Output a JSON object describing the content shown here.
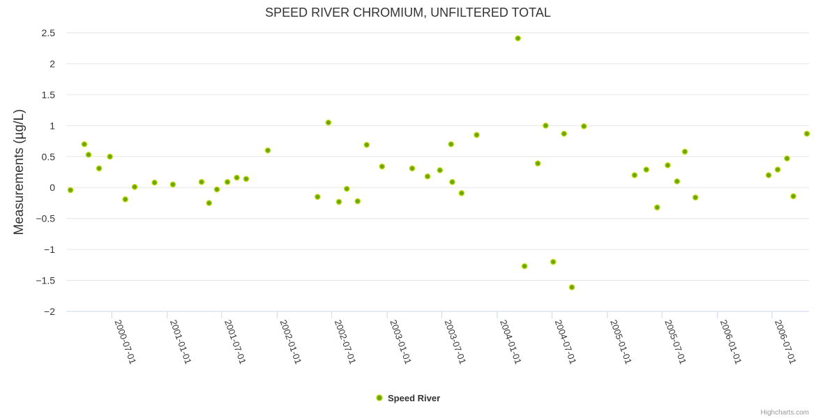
{
  "credits": "Highcharts.com",
  "colors": {
    "point_fill": "#66a80f",
    "point_stroke": "#c6d40a"
  },
  "chart_data": {
    "type": "scatter",
    "title": "SPEED RIVER CHROMIUM, UNFILTERED TOTAL",
    "ylabel": "Measurements (µg/L)",
    "xlabel": "",
    "ylim": [
      -2,
      2.5
    ],
    "yticks": [
      "2.5",
      "2",
      "1.5",
      "1",
      "0.5",
      "0",
      "−0.5",
      "−1",
      "−1.5",
      "−2"
    ],
    "ytick_values": [
      2.5,
      2,
      1.5,
      1,
      0.5,
      0,
      -0.5,
      -1,
      -1.5,
      -2
    ],
    "xlim": [
      "2000-02-01",
      "2006-11-01"
    ],
    "xticks": [
      "2000-07-01",
      "2001-01-01",
      "2001-07-01",
      "2002-01-01",
      "2002-07-01",
      "2003-01-01",
      "2003-07-01",
      "2004-01-01",
      "2004-07-01",
      "2005-01-01",
      "2005-07-01",
      "2006-01-01",
      "2006-07-01"
    ],
    "grid": true,
    "legend_position": "bottom-center",
    "series": [
      {
        "name": "Speed River",
        "points": [
          {
            "x": "2000-02-15",
            "y": -0.04
          },
          {
            "x": "2000-04-01",
            "y": 0.7
          },
          {
            "x": "2000-04-15",
            "y": 0.53
          },
          {
            "x": "2000-05-20",
            "y": 0.31
          },
          {
            "x": "2000-06-25",
            "y": 0.5
          },
          {
            "x": "2000-08-15",
            "y": -0.19
          },
          {
            "x": "2000-09-15",
            "y": 0.01
          },
          {
            "x": "2000-11-20",
            "y": 0.08
          },
          {
            "x": "2001-01-20",
            "y": 0.05
          },
          {
            "x": "2001-04-25",
            "y": 0.09
          },
          {
            "x": "2001-05-20",
            "y": -0.25
          },
          {
            "x": "2001-06-15",
            "y": -0.03
          },
          {
            "x": "2001-07-20",
            "y": 0.09
          },
          {
            "x": "2001-08-20",
            "y": 0.16
          },
          {
            "x": "2001-09-20",
            "y": 0.14
          },
          {
            "x": "2001-12-01",
            "y": 0.6
          },
          {
            "x": "2002-05-15",
            "y": -0.15
          },
          {
            "x": "2002-06-20",
            "y": 1.05
          },
          {
            "x": "2002-07-25",
            "y": -0.23
          },
          {
            "x": "2002-08-20",
            "y": -0.02
          },
          {
            "x": "2002-09-25",
            "y": -0.22
          },
          {
            "x": "2002-10-25",
            "y": 0.69
          },
          {
            "x": "2002-12-15",
            "y": 0.34
          },
          {
            "x": "2003-03-25",
            "y": 0.31
          },
          {
            "x": "2003-05-15",
            "y": 0.18
          },
          {
            "x": "2003-06-25",
            "y": 0.28
          },
          {
            "x": "2003-08-01",
            "y": 0.7
          },
          {
            "x": "2003-08-05",
            "y": 0.09
          },
          {
            "x": "2003-09-05",
            "y": -0.09
          },
          {
            "x": "2003-10-25",
            "y": 0.85
          },
          {
            "x": "2004-03-10",
            "y": 2.41
          },
          {
            "x": "2004-04-01",
            "y": -1.27
          },
          {
            "x": "2004-05-15",
            "y": 0.39
          },
          {
            "x": "2004-06-10",
            "y": 1.0
          },
          {
            "x": "2004-07-05",
            "y": -1.2
          },
          {
            "x": "2004-08-10",
            "y": 0.87
          },
          {
            "x": "2004-09-05",
            "y": -1.61
          },
          {
            "x": "2004-10-15",
            "y": 0.99
          },
          {
            "x": "2005-04-01",
            "y": 0.2
          },
          {
            "x": "2005-05-10",
            "y": 0.29
          },
          {
            "x": "2005-06-15",
            "y": -0.32
          },
          {
            "x": "2005-07-20",
            "y": 0.36
          },
          {
            "x": "2005-08-20",
            "y": 0.1
          },
          {
            "x": "2005-09-15",
            "y": 0.58
          },
          {
            "x": "2005-10-20",
            "y": -0.16
          },
          {
            "x": "2006-06-20",
            "y": 0.2
          },
          {
            "x": "2006-07-20",
            "y": 0.29
          },
          {
            "x": "2006-08-20",
            "y": 0.47
          },
          {
            "x": "2006-09-10",
            "y": -0.14
          },
          {
            "x": "2006-10-25",
            "y": 0.87
          }
        ]
      }
    ]
  }
}
